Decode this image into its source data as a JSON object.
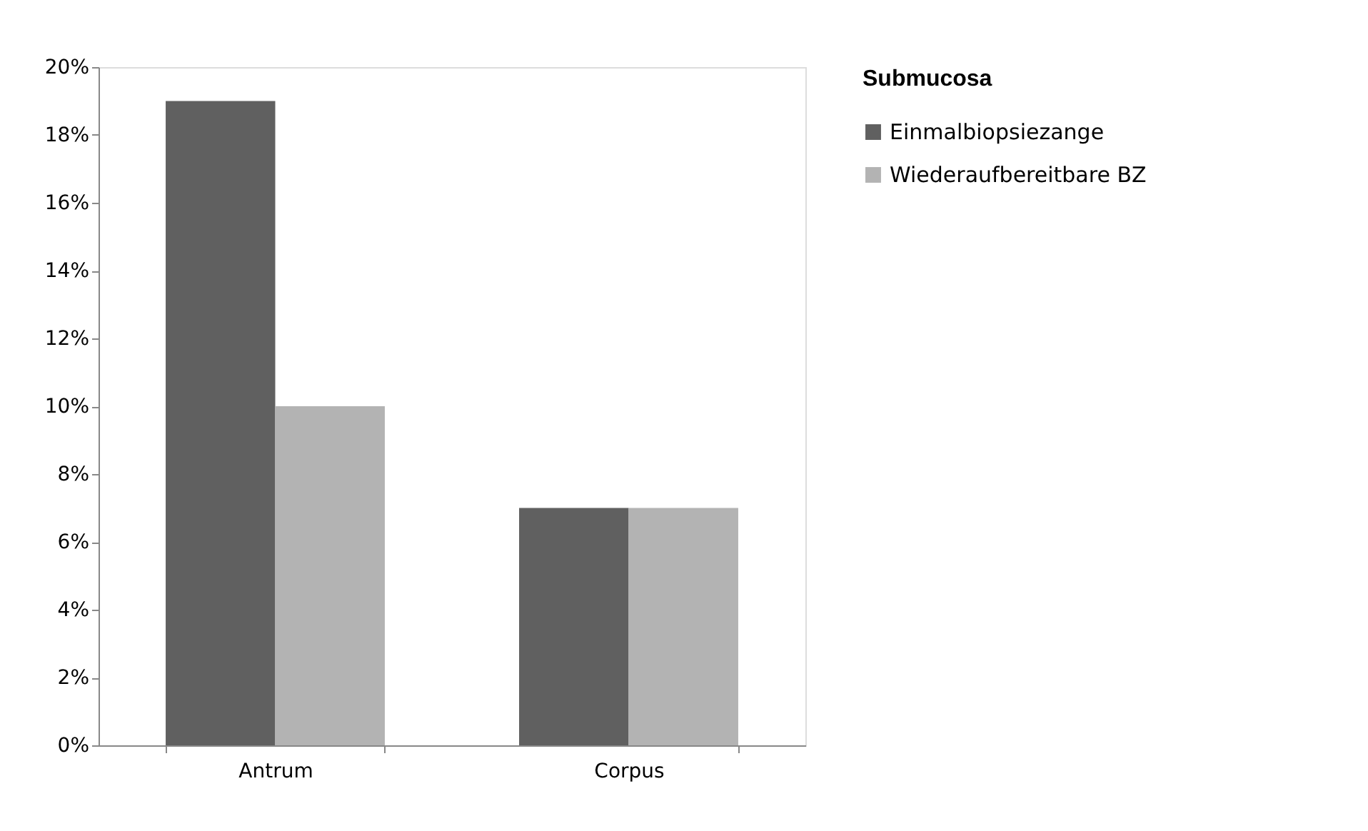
{
  "chart_data": {
    "type": "bar",
    "legend_title": "Submucosa",
    "categories": [
      "Antrum",
      "Corpus"
    ],
    "series": [
      {
        "name": "Einmalbiopsiezange",
        "color": "#606060",
        "values": [
          19,
          7
        ]
      },
      {
        "name": "Wiederaufbereitbare BZ",
        "color": "#b3b3b3",
        "values": [
          10,
          7
        ]
      }
    ],
    "ylim": [
      0,
      20
    ],
    "yticks": [
      {
        "value": 0,
        "label": "0%"
      },
      {
        "value": 2,
        "label": "2%"
      },
      {
        "value": 4,
        "label": "4%"
      },
      {
        "value": 6,
        "label": "6%"
      },
      {
        "value": 8,
        "label": "8%"
      },
      {
        "value": 10,
        "label": "10%"
      },
      {
        "value": 12,
        "label": "12%"
      },
      {
        "value": 14,
        "label": "14%"
      },
      {
        "value": 16,
        "label": "16%"
      },
      {
        "value": 18,
        "label": "18%"
      },
      {
        "value": 20,
        "label": "20%"
      }
    ],
    "grid": false,
    "legend": "right"
  }
}
